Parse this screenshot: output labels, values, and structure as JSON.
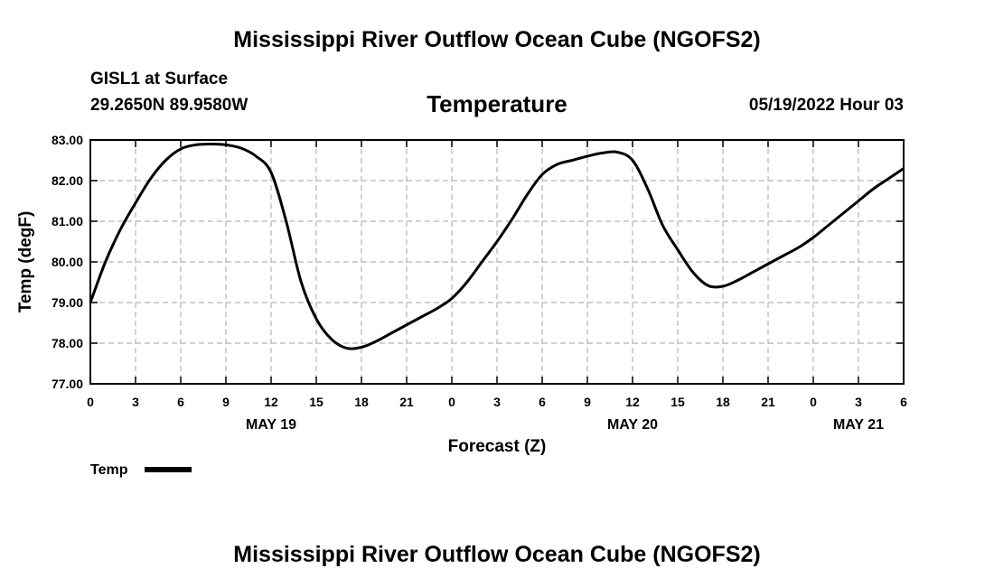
{
  "header": {
    "title": "Mississippi River Outflow Ocean Cube (NGOFS2)",
    "station": "GISL1 at Surface",
    "coords": "29.2650N  89.9580W",
    "variable": "Temperature",
    "run_time": "05/19/2022 Hour 03"
  },
  "footer": {
    "title": "Mississippi River Outflow Ocean Cube (NGOFS2)"
  },
  "chart_data": {
    "type": "line",
    "title": "Temperature",
    "xlabel": "Forecast (Z)",
    "ylabel": "Temp (degF)",
    "xlim": [
      0,
      54
    ],
    "ylim": [
      77.0,
      83.0
    ],
    "grid": true,
    "legend_position": "bottom-left",
    "x_ticks": [
      0,
      3,
      6,
      9,
      12,
      15,
      18,
      21,
      24,
      27,
      30,
      33,
      36,
      39,
      42,
      45,
      48,
      51,
      54
    ],
    "x_tick_labels": [
      "0",
      "3",
      "6",
      "9",
      "12",
      "15",
      "18",
      "21",
      "0",
      "3",
      "6",
      "9",
      "12",
      "15",
      "18",
      "21",
      "0",
      "3",
      "6"
    ],
    "y_ticks": [
      77,
      78,
      79,
      80,
      81,
      82,
      83
    ],
    "y_tick_labels": [
      "77.00",
      "78.00",
      "79.00",
      "80.00",
      "81.00",
      "82.00",
      "83.00"
    ],
    "date_labels": [
      {
        "x": 12,
        "label": "MAY 19"
      },
      {
        "x": 36,
        "label": "MAY 20"
      },
      {
        "x": 51,
        "label": "MAY 21"
      }
    ],
    "series": [
      {
        "name": "Temp",
        "color": "#000000",
        "x": [
          0,
          1,
          2,
          3,
          4,
          5,
          6,
          7,
          8,
          9,
          10,
          11,
          12,
          13,
          14,
          15,
          16,
          17,
          18,
          19,
          20,
          21,
          22,
          23,
          24,
          25,
          26,
          27,
          28,
          29,
          30,
          31,
          32,
          33,
          34,
          35,
          36,
          37,
          38,
          39,
          40,
          41,
          42,
          43,
          44,
          45,
          46,
          47,
          48,
          49,
          50,
          51,
          52,
          53,
          54
        ],
        "values": [
          79.0,
          80.0,
          80.8,
          81.45,
          82.05,
          82.5,
          82.78,
          82.88,
          82.9,
          82.88,
          82.8,
          82.6,
          82.2,
          81.0,
          79.5,
          78.6,
          78.1,
          77.88,
          77.9,
          78.05,
          78.25,
          78.45,
          78.65,
          78.85,
          79.1,
          79.5,
          80.0,
          80.5,
          81.05,
          81.65,
          82.15,
          82.4,
          82.5,
          82.6,
          82.68,
          82.7,
          82.5,
          81.8,
          80.9,
          80.3,
          79.75,
          79.42,
          79.4,
          79.55,
          79.75,
          79.95,
          80.15,
          80.35,
          80.6,
          80.9,
          81.2,
          81.5,
          81.8,
          82.05,
          82.3
        ]
      }
    ]
  }
}
